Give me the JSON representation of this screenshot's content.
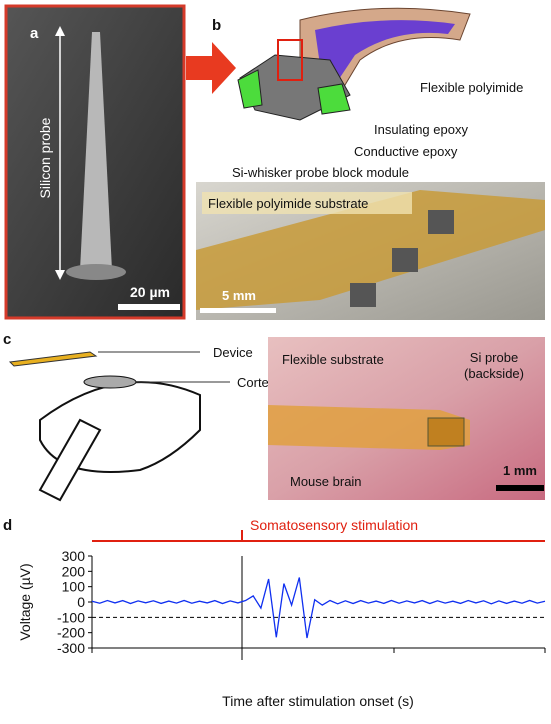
{
  "panels": {
    "a": {
      "label": "a",
      "probe_label": "Silicon probe",
      "scale_bar": "20 µm"
    },
    "b": {
      "label": "b",
      "polyimide": "Flexible polyimide",
      "insulating": "Insulating epoxy",
      "conductive": "Conductive epoxy",
      "module": "Si-whisker probe block module",
      "substrate": "Flexible polyimide substrate",
      "scale_bar": "5 mm"
    },
    "c": {
      "label": "c",
      "device": "Device",
      "cortex": "Cortex",
      "flex": "Flexible substrate",
      "si_probe_1": "Si probe",
      "si_probe_2": "(backside)",
      "brain": "Mouse brain",
      "scale_bar": "1 mm"
    },
    "d": {
      "label": "d",
      "stimulation": "Somatosensory stimulation"
    }
  },
  "chart_data": {
    "type": "line",
    "ylabel": "Voltage (µV)",
    "xlabel": "Time after stimulation onset (s)",
    "ylim": [
      -300,
      300
    ],
    "yticks": [
      -300,
      -200,
      -100,
      0,
      100,
      200,
      300
    ],
    "threshold": -100,
    "color": "#1030f0",
    "categories": [
      null,
      null,
      null,
      null,
      null,
      null,
      null,
      null,
      null,
      null,
      null,
      null,
      null,
      null,
      null,
      null,
      null,
      null,
      null,
      null,
      null,
      null,
      null,
      null,
      null,
      null,
      null,
      null,
      null,
      null,
      null,
      null,
      null,
      null,
      null,
      null,
      null,
      null,
      null,
      null,
      null,
      null,
      null,
      null,
      null,
      null,
      null,
      null,
      null,
      null,
      null,
      null,
      null,
      null,
      null,
      null,
      null,
      null,
      null,
      null
    ],
    "values": [
      5,
      -8,
      10,
      -6,
      9,
      -10,
      7,
      -5,
      8,
      -9,
      6,
      -7,
      10,
      -8,
      5,
      -6,
      9,
      -10,
      7,
      -6,
      10,
      40,
      -40,
      150,
      -230,
      120,
      -20,
      160,
      -235,
      15,
      -20,
      10,
      -12,
      8,
      -10,
      9,
      -7,
      6,
      -9,
      10,
      -8,
      7,
      -6,
      9,
      -10,
      8,
      -7,
      5,
      -9,
      10,
      -6,
      8,
      -12,
      7,
      -9,
      6,
      -8,
      10,
      -7,
      5
    ]
  }
}
